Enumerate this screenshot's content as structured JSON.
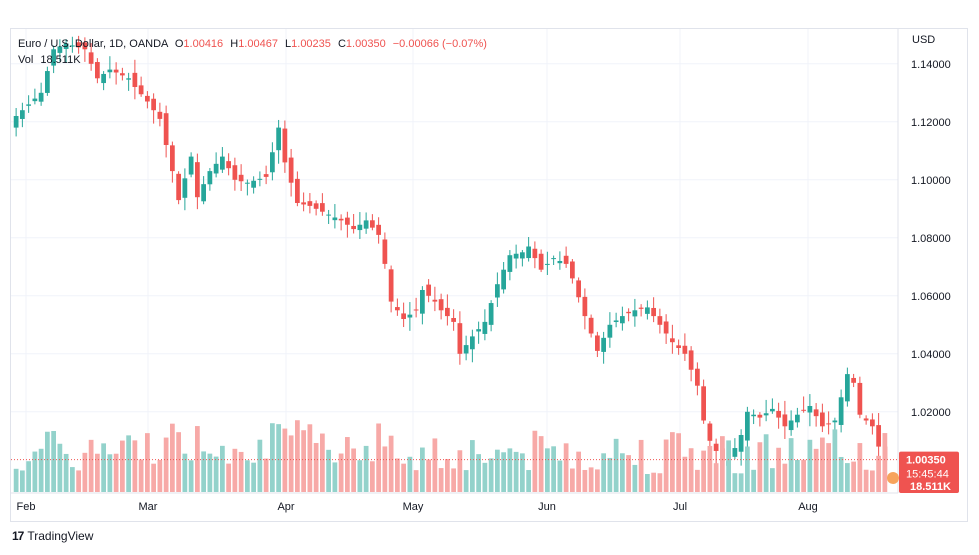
{
  "legend": {
    "symbol": "Euro / U.S. Dollar, 1D, OANDA",
    "o_label": "O",
    "o": "1.00416",
    "h_label": "H",
    "h": "1.00467",
    "l_label": "L",
    "l": "1.00235",
    "c_label": "C",
    "c": "1.00350",
    "change": "−0.00066 (−0.07%)",
    "vol_label": "Vol",
    "vol": "18.511K"
  },
  "currency": "USD",
  "branding": "TradingView",
  "colors": {
    "up": "#26a69a",
    "down": "#ef5350",
    "up_vol": "#93d2cb",
    "down_vol": "#f7a9a7",
    "grid": "#f0f3fa"
  },
  "chart_data": {
    "type": "candlestick",
    "y_axis": {
      "range": [
        0.992,
        1.152
      ],
      "ticks": [
        "1.14000",
        "1.12000",
        "1.10000",
        "1.08000",
        "1.06000",
        "1.04000",
        "1.02000"
      ]
    },
    "x_axis": {
      "ticks": [
        "Feb",
        "Mar",
        "Apr",
        "May",
        "Jun",
        "Jul",
        "Aug"
      ]
    },
    "last_price": "1.00350",
    "countdown": "15:45:44",
    "last_volume": "18.511K",
    "close_path": [
      [
        0,
        1.122
      ],
      [
        4,
        1.13
      ],
      [
        6,
        1.145
      ],
      [
        8,
        1.147
      ],
      [
        11,
        1.145
      ],
      [
        13,
        1.135
      ],
      [
        15,
        1.138
      ],
      [
        18,
        1.135
      ],
      [
        19,
        1.132
      ],
      [
        21,
        1.127
      ],
      [
        23,
        1.121
      ],
      [
        25,
        1.103
      ],
      [
        26,
        1.093
      ],
      [
        28,
        1.108
      ],
      [
        29,
        1.094
      ],
      [
        31,
        1.103
      ],
      [
        33,
        1.108
      ],
      [
        35,
        1.1
      ],
      [
        37,
        1.099
      ],
      [
        40,
        1.101
      ],
      [
        42,
        1.118
      ],
      [
        43,
        1.106
      ],
      [
        45,
        1.092
      ],
      [
        47,
        1.091
      ],
      [
        50,
        1.088
      ],
      [
        52,
        1.086
      ],
      [
        54,
        1.083
      ],
      [
        56,
        1.086
      ],
      [
        58,
        1.081
      ],
      [
        59,
        1.071
      ],
      [
        60,
        1.058
      ],
      [
        62,
        1.052
      ],
      [
        64,
        1.055
      ],
      [
        65,
        1.062
      ],
      [
        67,
        1.058
      ],
      [
        68,
        1.055
      ],
      [
        70,
        1.051
      ],
      [
        71,
        1.04
      ],
      [
        73,
        1.046
      ],
      [
        75,
        1.051
      ],
      [
        77,
        1.064
      ],
      [
        79,
        1.074
      ],
      [
        81,
        1.075
      ],
      [
        82,
        1.077
      ],
      [
        84,
        1.069
      ],
      [
        86,
        1.073
      ],
      [
        88,
        1.071
      ],
      [
        89,
        1.066
      ],
      [
        91,
        1.053
      ],
      [
        93,
        1.041
      ],
      [
        95,
        1.05
      ],
      [
        97,
        1.053
      ],
      [
        99,
        1.055
      ],
      [
        101,
        1.056
      ],
      [
        103,
        1.05
      ],
      [
        105,
        1.044
      ],
      [
        107,
        1.04
      ],
      [
        109,
        1.029
      ],
      [
        110,
        1.017
      ],
      [
        111,
        1.01
      ],
      [
        113,
        1.003
      ],
      [
        114,
        1.003
      ],
      [
        116,
        1.012
      ],
      [
        117,
        1.02
      ],
      [
        119,
        1.018
      ],
      [
        121,
        1.021
      ],
      [
        123,
        1.015
      ],
      [
        125,
        1.019
      ],
      [
        127,
        1.022
      ],
      [
        129,
        1.015
      ],
      [
        131,
        1.017
      ],
      [
        133,
        1.033
      ],
      [
        134,
        1.03
      ],
      [
        135,
        1.019
      ],
      [
        137,
        1.015
      ],
      [
        138,
        1.008
      ],
      [
        139,
        1.0035
      ]
    ]
  }
}
